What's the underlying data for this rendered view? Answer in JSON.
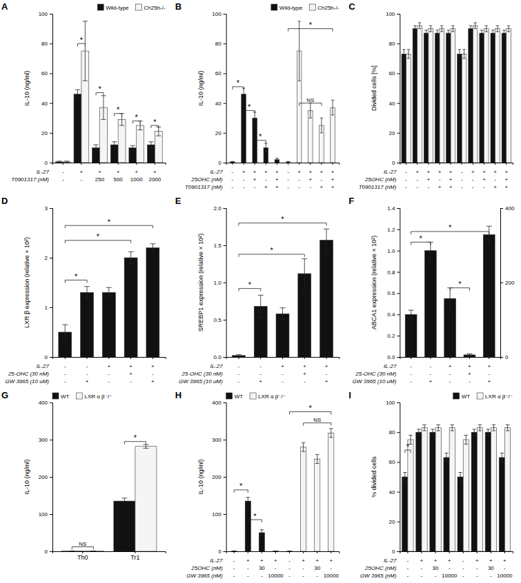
{
  "chart_data": [
    {
      "type": "bar",
      "title": "A",
      "ylabel": "IL-10 (ng/ml)",
      "categories": [
        null,
        null,
        null,
        null,
        null,
        null
      ],
      "series": [
        {
          "name": "Wild-type",
          "color": "#111111",
          "values": [
            0.5,
            46,
            10,
            12,
            10,
            12
          ],
          "errors": [
            0.5,
            3,
            2,
            2,
            1.5,
            2
          ]
        },
        {
          "name": "Ch25h-/-",
          "color": "#f5f5f5",
          "values": [
            0.5,
            75,
            37,
            29,
            25,
            21
          ],
          "errors": [
            0.5,
            20,
            8,
            4,
            3,
            3
          ]
        }
      ],
      "ylim": [
        0,
        100
      ],
      "yticks": [
        0,
        20,
        40,
        60,
        80,
        100
      ],
      "legend": "upper right",
      "condition_rows": [
        {
          "label": "IL-27",
          "values": [
            "-",
            "+",
            "+",
            "+",
            "+",
            "+"
          ]
        },
        {
          "label": "T0901317 (nM)",
          "values": [
            "-",
            "-",
            "250",
            "500",
            "1000",
            "2000"
          ]
        }
      ],
      "annotations": [
        {
          "text": "*",
          "y": 80,
          "category": 1
        },
        {
          "text": "*",
          "y": 47,
          "category": 2
        },
        {
          "text": "*",
          "y": 33,
          "category": 3
        },
        {
          "text": "*",
          "y": 28,
          "category": 4
        },
        {
          "text": "*",
          "y": 25,
          "category": 5
        }
      ]
    },
    {
      "type": "bar",
      "title": "B",
      "ylabel": "IL-10 (ng/ml)",
      "categories": [
        null,
        null,
        null,
        null,
        null,
        null,
        null,
        null,
        null,
        null
      ],
      "series": [
        {
          "name": "Wild-type",
          "color": "#111111",
          "values": [
            0.5,
            46,
            30,
            10,
            2,
            null,
            null,
            null,
            null,
            null
          ],
          "errors": [
            0.3,
            4,
            4,
            3,
            1,
            null,
            null,
            null,
            null,
            null
          ]
        },
        {
          "name": "Ch25h-/-",
          "color": "#f5f5f5",
          "values": [
            null,
            null,
            null,
            null,
            null,
            0.5,
            75,
            35,
            25,
            37
          ],
          "errors": [
            null,
            null,
            null,
            null,
            null,
            0.3,
            20,
            5,
            5,
            5
          ]
        }
      ],
      "ylim": [
        0,
        100
      ],
      "yticks": [
        0,
        20,
        40,
        60,
        80,
        100
      ],
      "legend": "upper right",
      "condition_rows": [
        {
          "label": "IL-27",
          "values": [
            "-",
            "+",
            "+",
            "+",
            "+",
            "-",
            "+",
            "+",
            "+",
            "+"
          ]
        },
        {
          "label": "25OHC (nM)",
          "values": [
            "-",
            "-",
            "+",
            "-",
            "+",
            "-",
            "-",
            "+",
            "-",
            "+"
          ]
        },
        {
          "label": "T0901317 (nM)",
          "values": [
            "-",
            "-",
            "-",
            "+",
            "+",
            "-",
            "-",
            "-",
            "+",
            "+"
          ]
        }
      ],
      "annotations": [
        {
          "text": "*",
          "y": 51,
          "from": 0,
          "to": 1
        },
        {
          "text": "*",
          "y": 35,
          "from": 1,
          "to": 2
        },
        {
          "text": "*",
          "y": 15,
          "from": 2,
          "to": 3
        },
        {
          "text": "NS",
          "y": 40,
          "from": 6,
          "to": 8
        },
        {
          "text": "*",
          "y": 90,
          "from": 5,
          "to": 9
        }
      ]
    },
    {
      "type": "bar",
      "title": "C",
      "ylabel": "Divided cells [%]",
      "categories": [
        null,
        null,
        null,
        null,
        null,
        null,
        null,
        null,
        null,
        null
      ],
      "series": [
        {
          "color": "#111111",
          "values": [
            73,
            90,
            87,
            87,
            87,
            73,
            90,
            87,
            87,
            87
          ],
          "errors": [
            3,
            2,
            2,
            2,
            2,
            3,
            2,
            2,
            2,
            2
          ]
        },
        {
          "color": "#f5f5f5",
          "values": [
            73,
            92,
            90,
            90,
            90,
            73,
            92,
            90,
            90,
            90
          ],
          "errors": [
            3,
            2,
            2,
            2,
            2,
            3,
            2,
            2,
            2,
            2
          ]
        }
      ],
      "ylim": [
        0,
        100
      ],
      "yticks": [
        0,
        20,
        40,
        60,
        80,
        100
      ],
      "condition_rows": [
        {
          "label": "IL-27",
          "values": [
            "-",
            "+",
            "+",
            "+",
            "+",
            "-",
            "+",
            "+",
            "+",
            "+"
          ]
        },
        {
          "label": "25OHC (nM)",
          "values": [
            "-",
            "-",
            "+",
            "-",
            "+",
            "-",
            "-",
            "+",
            "-",
            "+"
          ]
        },
        {
          "label": "T0901317 (nM)",
          "values": [
            "-",
            "-",
            "-",
            "+",
            "+",
            "-",
            "-",
            "-",
            "+",
            "+"
          ]
        }
      ]
    },
    {
      "type": "bar",
      "title": "D",
      "ylabel": "LXR β expression (relative × 10²)",
      "categories": [
        null,
        null,
        null,
        null,
        null
      ],
      "series": [
        {
          "color": "#111111",
          "values": [
            0.5,
            1.3,
            1.3,
            2.0,
            2.2
          ],
          "errors": [
            0.15,
            0.12,
            0.1,
            0.12,
            0.08
          ]
        }
      ],
      "ylim": [
        0,
        3
      ],
      "yticks": [
        0,
        1,
        2,
        3
      ],
      "condition_rows": [
        {
          "label": "IL-27",
          "values": [
            "-",
            "-",
            "+",
            "+",
            "+"
          ]
        },
        {
          "label": "25-OHC (30 nM)",
          "values": [
            "-",
            "-",
            "-",
            "+",
            "-"
          ]
        },
        {
          "label": "GW 3965 (10 uM)",
          "values": [
            "-",
            "+",
            "-",
            "-",
            "+"
          ]
        }
      ],
      "annotations": [
        {
          "text": "*",
          "y": 1.55,
          "from": 0,
          "to": 1
        },
        {
          "text": "*",
          "y": 2.35,
          "from": 0,
          "to": 3
        },
        {
          "text": "*",
          "y": 2.65,
          "from": 0,
          "to": 4
        }
      ]
    },
    {
      "type": "bar",
      "title": "E",
      "ylabel": "SREBP1 expression (relative × 10²)",
      "categories": [
        null,
        null,
        null,
        null,
        null
      ],
      "series": [
        {
          "color": "#111111",
          "values": [
            0.02,
            0.68,
            0.58,
            1.12,
            1.57
          ],
          "errors": [
            0.01,
            0.15,
            0.08,
            0.2,
            0.15
          ]
        }
      ],
      "ylim": [
        0,
        2.0
      ],
      "yticks": [
        {
          "value": 0,
          "label": "0.0"
        },
        0.5,
        {
          "value": 1,
          "label": "1.0"
        },
        1.5,
        {
          "value": 2,
          "label": "2.0"
        }
      ],
      "condition_rows": [
        {
          "label": "IL-27",
          "values": [
            "-",
            "-",
            "+",
            "+",
            "+"
          ]
        },
        {
          "label": "25-OHC (30 nM)",
          "values": [
            "-",
            "-",
            "-",
            "+",
            "-"
          ]
        },
        {
          "label": "GW 3965 (10 uM)",
          "values": [
            "-",
            "+",
            "-",
            "-",
            "+"
          ]
        }
      ],
      "annotations": [
        {
          "text": "*",
          "y": 0.92,
          "from": 0,
          "to": 1
        },
        {
          "text": "*",
          "y": 1.38,
          "from": 0,
          "to": 3
        },
        {
          "text": "*",
          "y": 1.8,
          "from": 0,
          "to": 4
        }
      ]
    },
    {
      "type": "bar",
      "title": "F",
      "ylabel": "ABCA1 expression (relative × 10²)",
      "categories": [
        null,
        null,
        null,
        null,
        null
      ],
      "series": [
        {
          "color": "#111111",
          "values": [
            0.4,
            1.0,
            0.55,
            0.02,
            1.15
          ],
          "errors": [
            0.04,
            0.08,
            0.1,
            0.01,
            0.08
          ]
        }
      ],
      "ylim": [
        0,
        1.4
      ],
      "yticks": [
        {
          "value": 0,
          "label": "0.0"
        },
        0.2,
        0.4,
        0.6,
        0.8,
        {
          "value": 1,
          "label": "1.0"
        },
        1.2,
        1.4
      ],
      "y2lim": [
        0,
        400
      ],
      "y2ticks": [
        0,
        200,
        400
      ],
      "condition_rows": [
        {
          "label": "IL-27",
          "values": [
            "-",
            "-",
            "+",
            "+",
            "+"
          ]
        },
        {
          "label": "25-OHC (30 nM)",
          "values": [
            "-",
            "-",
            "-",
            "+",
            "-"
          ]
        },
        {
          "label": "GW 3965 (10 uM)",
          "values": [
            "-",
            "+",
            "-",
            "-",
            "+"
          ]
        }
      ],
      "annotations": [
        {
          "text": "*",
          "y": 1.08,
          "from": 0,
          "to": 1
        },
        {
          "text": "*",
          "y": 1.18,
          "from": 0,
          "to": 4
        },
        {
          "text": "*",
          "y": 0.65,
          "from": 2,
          "to": 3
        }
      ]
    },
    {
      "type": "bar",
      "title": "G",
      "ylabel": "IL-10 (ng/ml)",
      "categories": [
        "Th0",
        "Tr1"
      ],
      "series": [
        {
          "name": "WT",
          "color": "#111111",
          "values": [
            0.5,
            135
          ],
          "errors": [
            0.3,
            8
          ]
        },
        {
          "name": "LXR α β⁻/⁻",
          "color": "#f5f5f5",
          "values": [
            0.5,
            282
          ],
          "errors": [
            0.3,
            5
          ]
        }
      ],
      "ylim": [
        0,
        400
      ],
      "yticks": [
        0,
        100,
        200,
        300,
        400
      ],
      "legend": "upper left",
      "annotations": [
        {
          "text": "NS",
          "y": 12,
          "category": 0
        },
        {
          "text": "*",
          "y": 295,
          "category": 1
        }
      ]
    },
    {
      "type": "bar",
      "title": "H",
      "ylabel": "IL-10 (ng/ml)",
      "categories": [
        null,
        null,
        null,
        null,
        null,
        null,
        null,
        null
      ],
      "series": [
        {
          "name": "WT",
          "color": "#111111",
          "values": [
            0.5,
            135,
            50,
            0.5,
            null,
            null,
            null,
            null
          ],
          "errors": [
            0.3,
            10,
            8,
            0,
            null,
            null,
            null,
            null
          ]
        },
        {
          "name": "LXR α β⁻/⁻",
          "color": "#f5f5f5",
          "values": [
            null,
            null,
            null,
            null,
            0.5,
            280,
            248,
            318
          ],
          "errors": [
            null,
            null,
            null,
            null,
            0,
            12,
            12,
            12
          ]
        }
      ],
      "ylim": [
        0,
        400
      ],
      "yticks": [
        0,
        100,
        200,
        300,
        400
      ],
      "legend": "upper left",
      "condition_rows": [
        {
          "label": "IL-27",
          "values": [
            "-",
            "+",
            "+",
            "+",
            "-",
            "+",
            "+",
            "+"
          ]
        },
        {
          "label": "25OHC (nM)",
          "values": [
            "-",
            "-",
            "30",
            "-",
            "-",
            "-",
            "30",
            "-"
          ]
        },
        {
          "label": "GW 3965 (nM)",
          "values": [
            "-",
            "-",
            "-",
            "10000",
            "-",
            "-",
            "-",
            "10000"
          ]
        }
      ],
      "annotations": [
        {
          "text": "*",
          "y": 165,
          "from": 0,
          "to": 1
        },
        {
          "text": "*",
          "y": 85,
          "from": 1,
          "to": 2
        },
        {
          "text": "*",
          "y": 375,
          "from": 4,
          "to": 7
        },
        {
          "text": "NS",
          "y": 345,
          "from": 5,
          "to": 7
        }
      ]
    },
    {
      "type": "bar",
      "title": "I",
      "ylabel": "% divided cells",
      "categories": [
        null,
        null,
        null,
        null,
        null,
        null,
        null,
        null
      ],
      "series": [
        {
          "name": "WT",
          "color": "#111111",
          "values": [
            50,
            80,
            80,
            63,
            50,
            80,
            80,
            63
          ],
          "errors": [
            3,
            2,
            2,
            3,
            3,
            2,
            2,
            3
          ]
        },
        {
          "name": "LXR α β⁻/⁻",
          "color": "#f5f5f5",
          "values": [
            75,
            83,
            83,
            83,
            75,
            83,
            83,
            83
          ],
          "errors": [
            3,
            2,
            2,
            2,
            3,
            2,
            2,
            2
          ]
        }
      ],
      "ylim": [
        0,
        100
      ],
      "yticks": [
        0,
        20,
        40,
        60,
        80,
        100
      ],
      "legend": "upper right",
      "condition_rows": [
        {
          "label": "IL-27",
          "values": [
            "-",
            "+",
            "+",
            "+",
            "-",
            "+",
            "+",
            "+"
          ]
        },
        {
          "label": "25OHC (nM)",
          "values": [
            "-",
            "-",
            "30",
            "-",
            "-",
            "-",
            "30",
            "-"
          ]
        },
        {
          "label": "GW 3965 (nM)",
          "values": [
            "-",
            "-",
            "-",
            "10000",
            "-",
            "-",
            "-",
            "10000"
          ]
        }
      ],
      "annotations": [
        {
          "text": "*",
          "y": 68,
          "category": 0
        }
      ]
    }
  ]
}
